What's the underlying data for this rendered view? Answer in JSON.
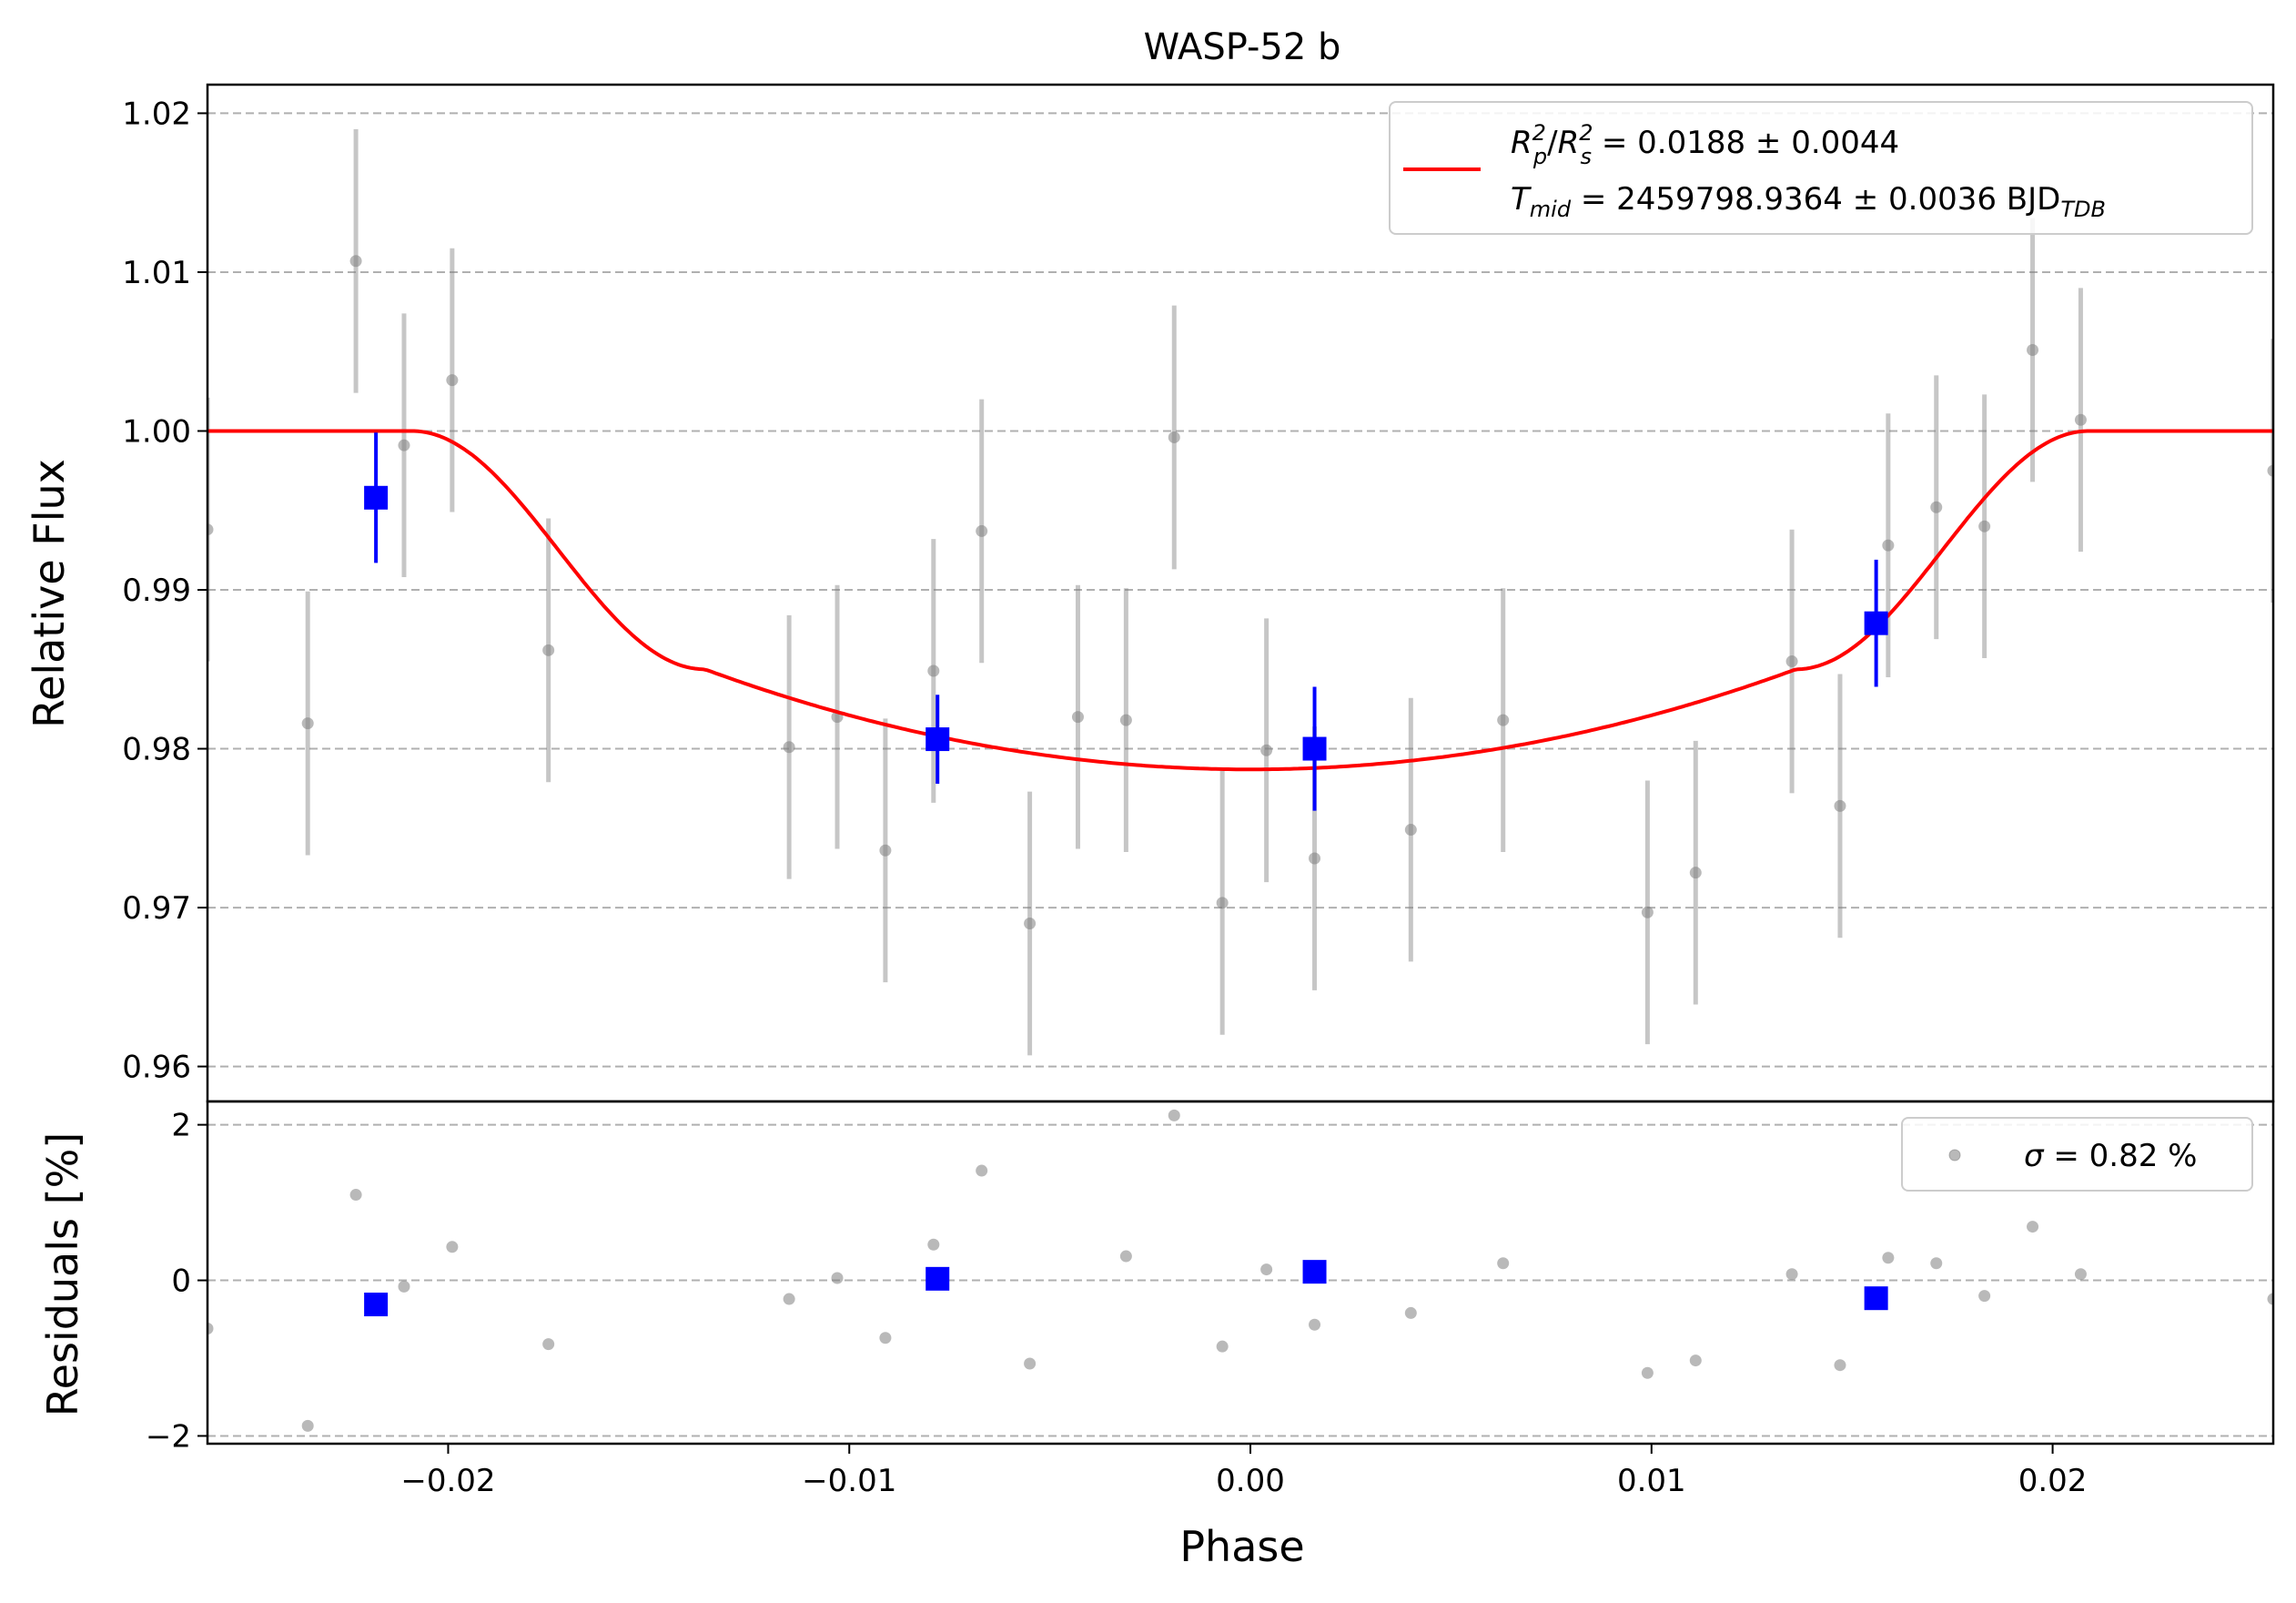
{
  "chart_data": [
    {
      "type": "scatter",
      "title": "WASP-52 b",
      "xlabel": "",
      "ylabel": "Relative Flux",
      "xlim": [
        -0.026,
        0.0255
      ],
      "ylim": [
        0.9578,
        1.0218
      ],
      "x_ticks": [
        -0.02,
        -0.01,
        0.0,
        0.01,
        0.02
      ],
      "y_ticks": [
        0.96,
        0.97,
        0.98,
        0.99,
        1.0,
        1.01,
        1.02
      ],
      "y_tick_labels": [
        "0.96",
        "0.97",
        "0.98",
        "0.99",
        "1.00",
        "1.01",
        "1.02"
      ],
      "grid": "horizontal dashed",
      "legend": {
        "placement": "top-right",
        "line1": {
          "var": "R",
          "sub1": "p",
          "sup1": "2",
          "sep": "/",
          "sub2": "s",
          "sup2": "2",
          "value": " = 0.0188 ± 0.0044"
        },
        "line2": {
          "var": "T",
          "sub": "mid",
          "value": " = 2459798.9364 ± 0.0036 BJD",
          "unit_sub": "TDB"
        }
      },
      "series": [
        {
          "kind": "data-points",
          "color": "#808080",
          "x": [
            -0.026,
            -0.0235,
            -0.0223,
            -0.0211,
            -0.0199,
            -0.0175,
            -0.0115,
            -0.0103,
            -0.0091,
            -0.0079,
            -0.0067,
            -0.0055,
            -0.0043,
            -0.0031,
            -0.0019,
            -0.0007,
            0.0004,
            0.0016,
            0.004,
            0.0063,
            0.0099,
            0.0111,
            0.0135,
            0.0147,
            0.0159,
            0.0171,
            0.0183,
            0.0195,
            0.0207,
            0.0255
          ],
          "y": [
            0.9938,
            0.9816,
            1.0107,
            0.9991,
            1.0032,
            0.9862,
            0.9801,
            0.982,
            0.9736,
            0.9849,
            0.9937,
            0.969,
            0.982,
            0.9818,
            0.9996,
            0.9703,
            0.9799,
            0.9731,
            0.9749,
            0.9818,
            0.9697,
            0.9722,
            0.9855,
            0.9764,
            0.9928,
            0.9952,
            0.994,
            1.0051,
            1.0007,
            0.9975
          ],
          "yerr": 0.0083
        },
        {
          "kind": "binned-points",
          "color": "#0000ff",
          "x": [
            -0.0218,
            -0.0078,
            0.0016,
            0.0156
          ],
          "y": [
            0.9958,
            0.9806,
            0.98,
            0.9879
          ],
          "yerr": [
            0.0041,
            0.0028,
            0.0039,
            0.004
          ]
        },
        {
          "kind": "model",
          "color": "#ff0000",
          "params": {
            "depth": 0.0213,
            "t1": 0.0209,
            "t2": 0.0136
          }
        }
      ]
    },
    {
      "type": "scatter",
      "xlabel": "Phase",
      "ylabel": "Residuals [%]",
      "xlim": [
        -0.026,
        0.0255
      ],
      "ylim": [
        -2.1,
        2.3
      ],
      "x_ticks": [
        -0.02,
        -0.01,
        0.0,
        0.01,
        0.02
      ],
      "x_tick_labels": [
        "−0.02",
        "−0.01",
        "0.00",
        "0.01",
        "0.02"
      ],
      "y_ticks": [
        -2,
        0,
        2
      ],
      "y_tick_labels": [
        "−2",
        "0",
        "2"
      ],
      "grid": "horizontal dashed",
      "legend": {
        "placement": "top-right",
        "label": " = 0.82 %",
        "sigma": "σ"
      },
      "series": [
        {
          "kind": "residual-points",
          "color": "#808080",
          "x": [
            -0.026,
            -0.0235,
            -0.0223,
            -0.0211,
            -0.0199,
            -0.0175,
            -0.0115,
            -0.0103,
            -0.0091,
            -0.0079,
            -0.0067,
            -0.0055,
            -0.0031,
            -0.0019,
            -0.0007,
            0.0004,
            0.0016,
            0.004,
            0.0063,
            0.0099,
            0.0111,
            0.0135,
            0.0147,
            0.0159,
            0.0171,
            0.0183,
            0.0195,
            0.0207,
            0.0255
          ],
          "y": [
            -0.62,
            -1.87,
            1.1,
            -0.08,
            0.43,
            -0.82,
            -0.24,
            0.03,
            -0.74,
            0.46,
            1.41,
            -1.07,
            0.31,
            2.12,
            -0.85,
            0.14,
            -0.57,
            -0.42,
            0.22,
            -1.19,
            -1.03,
            0.08,
            -1.09,
            0.29,
            0.22,
            -0.2,
            0.69,
            0.08,
            -0.24
          ]
        },
        {
          "kind": "binned-residuals",
          "color": "#0000ff",
          "x": [
            -0.0218,
            -0.0078,
            0.0016,
            0.0156
          ],
          "y": [
            -0.31,
            0.02,
            0.11,
            -0.23
          ]
        }
      ]
    }
  ]
}
